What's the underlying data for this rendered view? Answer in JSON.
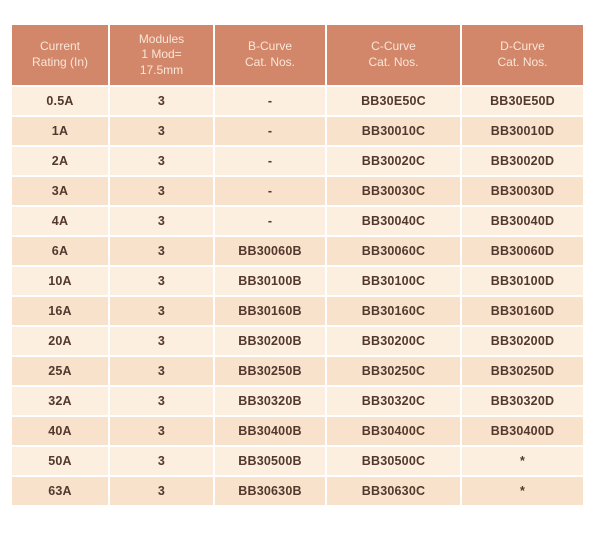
{
  "colors": {
    "header_bg": "#d3876a",
    "header_text": "#f9e6d8",
    "row_light": "#fcefdf",
    "row_dark": "#f9e2cc",
    "cell_text": "#53382e",
    "page_bg": "#ffffff"
  },
  "table": {
    "columns": [
      "Current\nRating (In)",
      "Modules\n1 Mod=\n17.5mm",
      "B-Curve\nCat. Nos.",
      "C-Curve\nCat. Nos.",
      "D-Curve\nCat. Nos."
    ],
    "rows": [
      [
        "0.5A",
        "3",
        "-",
        "BB30E50C",
        "BB30E50D"
      ],
      [
        "1A",
        "3",
        "-",
        "BB30010C",
        "BB30010D"
      ],
      [
        "2A",
        "3",
        "-",
        "BB30020C",
        "BB30020D"
      ],
      [
        "3A",
        "3",
        "-",
        "BB30030C",
        "BB30030D"
      ],
      [
        "4A",
        "3",
        "-",
        "BB30040C",
        "BB30040D"
      ],
      [
        "6A",
        "3",
        "BB30060B",
        "BB30060C",
        "BB30060D"
      ],
      [
        "10A",
        "3",
        "BB30100B",
        "BB30100C",
        "BB30100D"
      ],
      [
        "16A",
        "3",
        "BB30160B",
        "BB30160C",
        "BB30160D"
      ],
      [
        "20A",
        "3",
        "BB30200B",
        "BB30200C",
        "BB30200D"
      ],
      [
        "25A",
        "3",
        "BB30250B",
        "BB30250C",
        "BB30250D"
      ],
      [
        "32A",
        "3",
        "BB30320B",
        "BB30320C",
        "BB30320D"
      ],
      [
        "40A",
        "3",
        "BB30400B",
        "BB30400C",
        "BB30400D"
      ],
      [
        "50A",
        "3",
        "BB30500B",
        "BB30500C",
        "*"
      ],
      [
        "63A",
        "3",
        "BB30630B",
        "BB30630C",
        "*"
      ]
    ]
  }
}
